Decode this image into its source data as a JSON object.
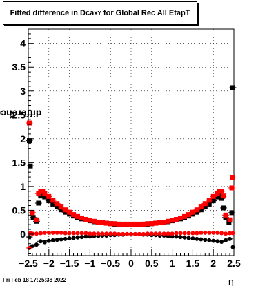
{
  "title": {
    "main": "Fitted difference in Dca",
    "sub": "XY",
    "suffix": " for Global Rec All EtapT"
  },
  "ylabel": {
    "main": "difference in Dca",
    "sub": "XY"
  },
  "xlabel": "η",
  "footer": "Fri Feb 18 17:25:38 2022",
  "chart_data": {
    "type": "scatter",
    "title": "Fitted difference in DcaXY for Global Rec All EtapT",
    "xlabel": "η",
    "ylabel": "difference in DcaXY",
    "xlim": [
      -2.5,
      2.5
    ],
    "ylim": [
      -0.45,
      4.3
    ],
    "xticks": [
      -2.5,
      -2,
      -1.5,
      -1,
      -0.5,
      0,
      0.5,
      1,
      1.5,
      2,
      2.5
    ],
    "yticks": [
      0,
      0.5,
      1,
      1.5,
      2,
      2.5,
      3,
      3.5,
      4
    ],
    "xtick_labels": [
      "−2.5",
      "−2",
      "−1.5",
      "−1",
      "−0.5",
      "0",
      "0.5",
      "1",
      "1.5",
      "2",
      "2.5"
    ],
    "ytick_labels": [
      "0",
      "0.5",
      "1",
      "1.5",
      "2",
      "2.5",
      "3",
      "3.5",
      "4"
    ],
    "grid": true,
    "legend": "none",
    "series": [
      {
        "color": "#000000",
        "marker": "square",
        "points": [
          [
            -2.45,
            1.43
          ],
          [
            -2.475,
            1.96
          ],
          [
            -2.38,
            0.35
          ],
          [
            -2.3,
            0.27
          ],
          [
            -2.25,
            0.65
          ],
          [
            -2.2,
            0.8
          ],
          [
            -2.15,
            0.82
          ],
          [
            -2.1,
            0.78
          ],
          [
            -2.0,
            0.7
          ],
          [
            -1.9,
            0.63
          ],
          [
            -1.8,
            0.57
          ],
          [
            -1.7,
            0.51
          ],
          [
            -1.6,
            0.46
          ],
          [
            -1.5,
            0.42
          ],
          [
            -1.4,
            0.38
          ],
          [
            -1.3,
            0.35
          ],
          [
            -1.2,
            0.32
          ],
          [
            -1.1,
            0.3
          ],
          [
            -1.0,
            0.28
          ],
          [
            -0.9,
            0.26
          ],
          [
            -0.8,
            0.25
          ],
          [
            -0.7,
            0.24
          ],
          [
            -0.6,
            0.23
          ],
          [
            -0.5,
            0.22
          ],
          [
            -0.4,
            0.21
          ],
          [
            -0.3,
            0.21
          ],
          [
            -0.2,
            0.2
          ],
          [
            -0.1,
            0.2
          ],
          [
            0.0,
            0.2
          ],
          [
            0.1,
            0.2
          ],
          [
            0.2,
            0.2
          ],
          [
            0.3,
            0.21
          ],
          [
            0.4,
            0.21
          ],
          [
            0.5,
            0.22
          ],
          [
            0.6,
            0.23
          ],
          [
            0.7,
            0.24
          ],
          [
            0.8,
            0.25
          ],
          [
            0.9,
            0.26
          ],
          [
            1.0,
            0.28
          ],
          [
            1.1,
            0.3
          ],
          [
            1.2,
            0.32
          ],
          [
            1.3,
            0.35
          ],
          [
            1.4,
            0.38
          ],
          [
            1.5,
            0.42
          ],
          [
            1.6,
            0.46
          ],
          [
            1.7,
            0.51
          ],
          [
            1.8,
            0.57
          ],
          [
            1.9,
            0.63
          ],
          [
            2.0,
            0.7
          ],
          [
            2.1,
            0.78
          ],
          [
            2.15,
            0.82
          ],
          [
            2.2,
            0.75
          ],
          [
            2.25,
            0.55
          ],
          [
            2.3,
            0.35
          ],
          [
            2.38,
            0.25
          ],
          [
            2.45,
            0.45
          ],
          [
            2.475,
            3.07
          ]
        ]
      },
      {
        "color": "#ff0000",
        "marker": "square",
        "points": [
          [
            -2.475,
            2.33
          ],
          [
            -2.4,
            0.45
          ],
          [
            -2.3,
            0.3
          ],
          [
            -2.25,
            0.85
          ],
          [
            -2.2,
            0.9
          ],
          [
            -2.15,
            0.9
          ],
          [
            -2.1,
            0.86
          ],
          [
            -2.0,
            0.79
          ],
          [
            -1.9,
            0.71
          ],
          [
            -1.8,
            0.64
          ],
          [
            -1.7,
            0.57
          ],
          [
            -1.6,
            0.51
          ],
          [
            -1.5,
            0.46
          ],
          [
            -1.4,
            0.41
          ],
          [
            -1.3,
            0.37
          ],
          [
            -1.2,
            0.34
          ],
          [
            -1.1,
            0.31
          ],
          [
            -1.0,
            0.29
          ],
          [
            -0.9,
            0.27
          ],
          [
            -0.8,
            0.25
          ],
          [
            -0.7,
            0.24
          ],
          [
            -0.6,
            0.23
          ],
          [
            -0.5,
            0.22
          ],
          [
            -0.4,
            0.22
          ],
          [
            -0.3,
            0.21
          ],
          [
            -0.2,
            0.21
          ],
          [
            -0.1,
            0.21
          ],
          [
            0.0,
            0.21
          ],
          [
            0.1,
            0.21
          ],
          [
            0.2,
            0.21
          ],
          [
            0.3,
            0.21
          ],
          [
            0.4,
            0.22
          ],
          [
            0.5,
            0.22
          ],
          [
            0.6,
            0.23
          ],
          [
            0.7,
            0.24
          ],
          [
            0.8,
            0.25
          ],
          [
            0.9,
            0.27
          ],
          [
            1.0,
            0.29
          ],
          [
            1.1,
            0.31
          ],
          [
            1.2,
            0.34
          ],
          [
            1.3,
            0.37
          ],
          [
            1.4,
            0.41
          ],
          [
            1.5,
            0.46
          ],
          [
            1.6,
            0.51
          ],
          [
            1.7,
            0.57
          ],
          [
            1.8,
            0.64
          ],
          [
            1.9,
            0.71
          ],
          [
            2.0,
            0.79
          ],
          [
            2.1,
            0.86
          ],
          [
            2.15,
            0.9
          ],
          [
            2.2,
            0.9
          ],
          [
            2.25,
            0.8
          ],
          [
            2.3,
            0.4
          ],
          [
            2.4,
            0.3
          ],
          [
            2.45,
            0.97
          ],
          [
            2.475,
            1.18
          ]
        ]
      },
      {
        "color": "#000000",
        "marker": "circle",
        "points": [
          [
            -2.475,
            -0.06
          ],
          [
            -2.4,
            -0.25
          ],
          [
            -2.3,
            -0.22
          ],
          [
            -2.2,
            -0.15
          ],
          [
            -2.1,
            -0.17
          ],
          [
            -2.0,
            -0.14
          ],
          [
            -1.9,
            -0.13
          ],
          [
            -1.8,
            -0.12
          ],
          [
            -1.7,
            -0.11
          ],
          [
            -1.6,
            -0.1
          ],
          [
            -1.5,
            -0.09
          ],
          [
            -1.4,
            -0.08
          ],
          [
            -1.3,
            -0.07
          ],
          [
            -1.2,
            -0.06
          ],
          [
            -1.1,
            -0.05
          ],
          [
            -1.0,
            -0.05
          ],
          [
            -0.9,
            -0.04
          ],
          [
            -0.8,
            -0.04
          ],
          [
            -0.7,
            -0.03
          ],
          [
            -0.6,
            -0.03
          ],
          [
            -0.5,
            -0.02
          ],
          [
            -0.4,
            -0.02
          ],
          [
            -0.3,
            -0.01
          ],
          [
            -0.2,
            -0.01
          ],
          [
            -0.1,
            0.0
          ],
          [
            0.0,
            0.0
          ],
          [
            0.1,
            0.0
          ],
          [
            0.2,
            0.0
          ],
          [
            0.3,
            -0.01
          ],
          [
            0.4,
            -0.01
          ],
          [
            0.5,
            -0.02
          ],
          [
            0.6,
            -0.02
          ],
          [
            0.7,
            -0.03
          ],
          [
            0.8,
            -0.03
          ],
          [
            0.9,
            -0.04
          ],
          [
            1.0,
            -0.05
          ],
          [
            1.1,
            -0.05
          ],
          [
            1.2,
            -0.06
          ],
          [
            1.3,
            -0.07
          ],
          [
            1.4,
            -0.08
          ],
          [
            1.5,
            -0.09
          ],
          [
            1.6,
            -0.1
          ],
          [
            1.7,
            -0.11
          ],
          [
            1.8,
            -0.12
          ],
          [
            1.9,
            -0.13
          ],
          [
            2.0,
            -0.14
          ],
          [
            2.1,
            -0.15
          ],
          [
            2.2,
            -0.16
          ],
          [
            2.3,
            -0.13
          ],
          [
            2.4,
            -0.1
          ],
          [
            2.475,
            -0.27
          ]
        ]
      },
      {
        "color": "#ff0000",
        "marker": "circle",
        "points": [
          [
            -2.475,
            -0.29
          ],
          [
            -2.45,
            0.02
          ],
          [
            -2.4,
            0.01
          ],
          [
            -2.3,
            0.01
          ],
          [
            -2.2,
            0.02
          ],
          [
            -2.1,
            0.03
          ],
          [
            -2.0,
            0.03
          ],
          [
            -1.9,
            0.03
          ],
          [
            -1.8,
            0.03
          ],
          [
            -1.7,
            0.03
          ],
          [
            -1.6,
            0.02
          ],
          [
            -1.5,
            0.02
          ],
          [
            -1.4,
            0.02
          ],
          [
            -1.3,
            0.02
          ],
          [
            -1.2,
            0.02
          ],
          [
            -1.1,
            0.02
          ],
          [
            -1.0,
            0.01
          ],
          [
            -0.9,
            0.01
          ],
          [
            -0.8,
            0.01
          ],
          [
            -0.7,
            0.01
          ],
          [
            -0.6,
            0.01
          ],
          [
            -0.5,
            0.01
          ],
          [
            -0.4,
            0.01
          ],
          [
            -0.3,
            0.0
          ],
          [
            -0.2,
            0.0
          ],
          [
            -0.1,
            0.0
          ],
          [
            0.0,
            0.0
          ],
          [
            0.1,
            0.0
          ],
          [
            0.2,
            0.0
          ],
          [
            0.3,
            0.0
          ],
          [
            0.4,
            0.01
          ],
          [
            0.5,
            0.01
          ],
          [
            0.6,
            0.01
          ],
          [
            0.7,
            0.01
          ],
          [
            0.8,
            0.01
          ],
          [
            0.9,
            0.01
          ],
          [
            1.0,
            0.01
          ],
          [
            1.1,
            0.02
          ],
          [
            1.2,
            0.02
          ],
          [
            1.3,
            0.02
          ],
          [
            1.4,
            0.02
          ],
          [
            1.5,
            0.02
          ],
          [
            1.6,
            0.02
          ],
          [
            1.7,
            0.03
          ],
          [
            1.8,
            0.03
          ],
          [
            1.9,
            0.03
          ],
          [
            2.0,
            0.03
          ],
          [
            2.1,
            0.03
          ],
          [
            2.2,
            0.02
          ],
          [
            2.3,
            0.01
          ],
          [
            2.4,
            0.02
          ],
          [
            2.475,
            0.02
          ]
        ]
      }
    ]
  }
}
